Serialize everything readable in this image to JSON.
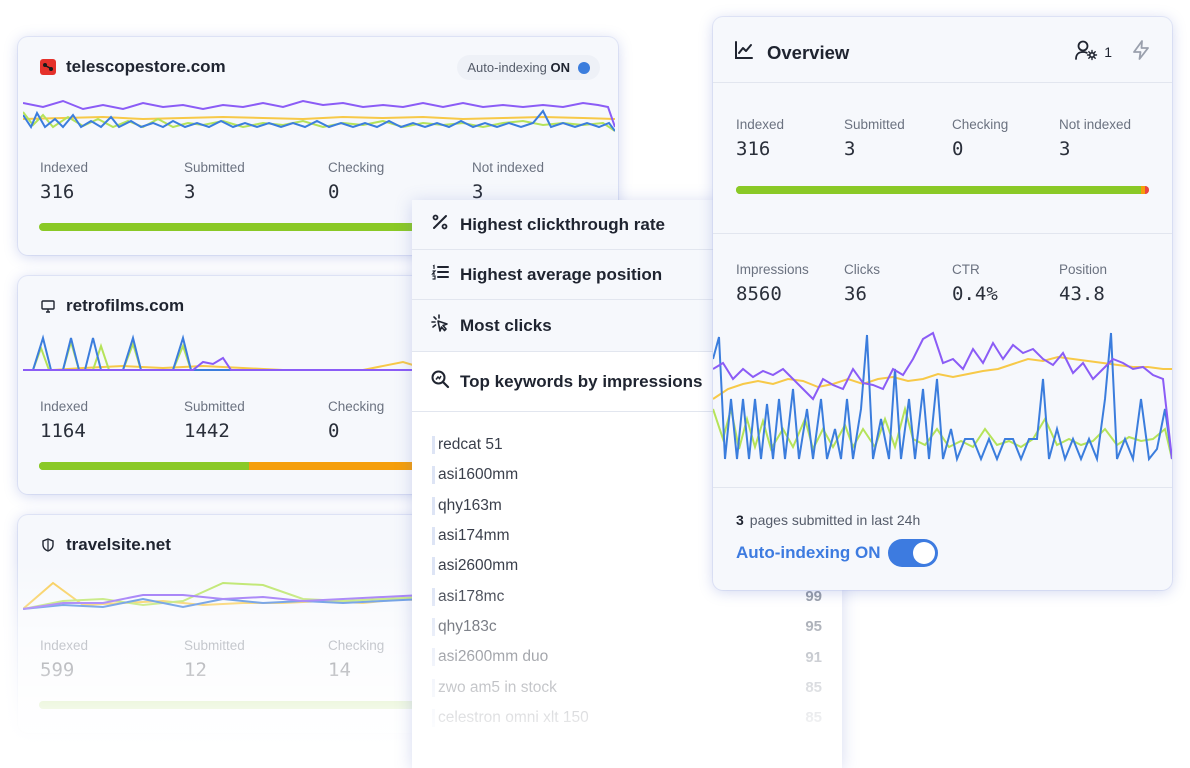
{
  "sites": [
    {
      "domain": "telescopestore.com",
      "icon": "telescope-favicon-icon",
      "auto_indexing_prefix": "Auto-indexing",
      "auto_indexing_state": "ON",
      "stats": [
        {
          "label": "Indexed",
          "value": "316"
        },
        {
          "label": "Submitted",
          "value": "3"
        },
        {
          "label": "Checking",
          "value": "0"
        },
        {
          "label": "Not indexed",
          "value": "3"
        }
      ]
    },
    {
      "domain": "retrofilms.com",
      "icon": "monitor-icon",
      "stats": [
        {
          "label": "Indexed",
          "value": "1164"
        },
        {
          "label": "Submitted",
          "value": "1442"
        },
        {
          "label": "Checking",
          "value": "0"
        }
      ]
    },
    {
      "domain": "travelsite.net",
      "icon": "shield-icon",
      "stats": [
        {
          "label": "Indexed",
          "value": "599"
        },
        {
          "label": "Submitted",
          "value": "12"
        },
        {
          "label": "Checking",
          "value": "14"
        }
      ]
    }
  ],
  "middle_panel": {
    "tabs": [
      {
        "label": "Highest clickthrough rate",
        "icon": "percent-icon"
      },
      {
        "label": "Highest average position",
        "icon": "ordered-list-icon"
      },
      {
        "label": "Most clicks",
        "icon": "cursor-click-icon"
      },
      {
        "label": "Top keywords by impressions",
        "icon": "search-zoom-icon"
      }
    ],
    "keywords": [
      {
        "name": "redcat 51",
        "value": ""
      },
      {
        "name": "asi1600mm",
        "value": ""
      },
      {
        "name": "qhy163m",
        "value": ""
      },
      {
        "name": "asi174mm",
        "value": ""
      },
      {
        "name": "asi2600mm",
        "value": ""
      },
      {
        "name": "asi178mc",
        "value": "99"
      },
      {
        "name": "qhy183c",
        "value": "95"
      },
      {
        "name": "asi2600mm duo",
        "value": "91"
      },
      {
        "name": "zwo am5 in stock",
        "value": "85"
      },
      {
        "name": "celestron omni xlt 150",
        "value": "85"
      }
    ]
  },
  "overview": {
    "title": "Overview",
    "users_count": "1",
    "index_stats": [
      {
        "label": "Indexed",
        "value": "316"
      },
      {
        "label": "Submitted",
        "value": "3"
      },
      {
        "label": "Checking",
        "value": "0"
      },
      {
        "label": "Not indexed",
        "value": "3"
      }
    ],
    "perf_stats": [
      {
        "label": "Impressions",
        "value": "8560"
      },
      {
        "label": "Clicks",
        "value": "36"
      },
      {
        "label": "CTR",
        "value": "0.4%"
      },
      {
        "label": "Position",
        "value": "43.8"
      }
    ],
    "pages_submitted_count": "3",
    "pages_submitted_text": "pages submitted in last 24h",
    "auto_indexing_label": "Auto-indexing ON",
    "auto_indexing_enabled": true
  },
  "colors": {
    "purple": "#8b5cf6",
    "blue": "#3b7ddd",
    "yellow": "#f7c948",
    "green": "#8ac926",
    "lime": "#b5e35a",
    "orange": "#f59e0b",
    "red": "#ef4444",
    "accent": "#3d7be0"
  }
}
